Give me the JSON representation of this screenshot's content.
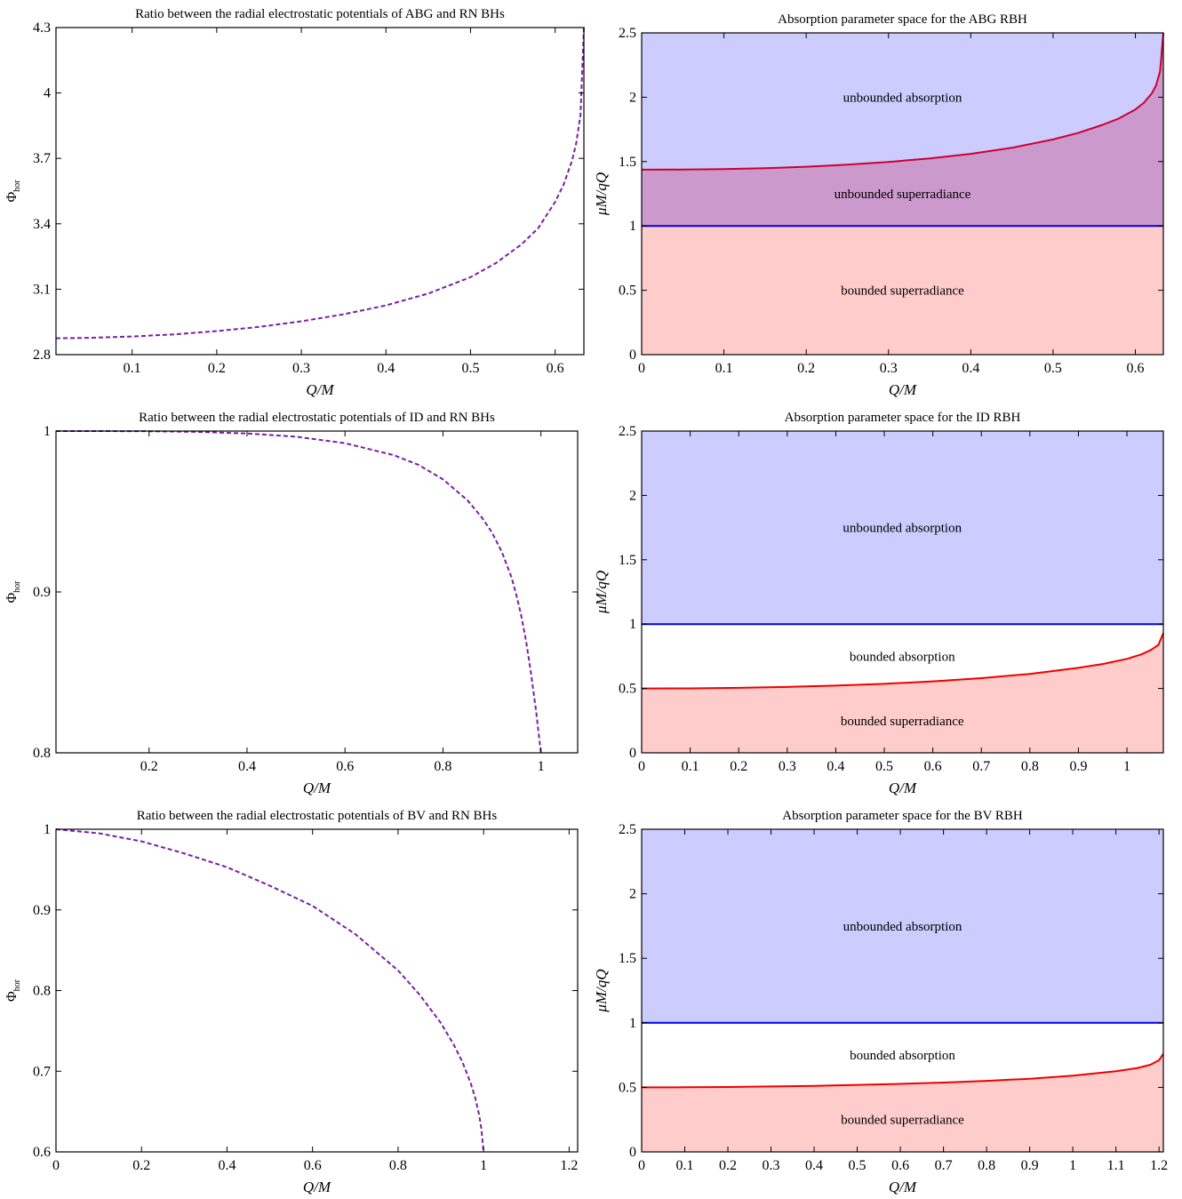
{
  "chart_data": [
    {
      "id": "abg-ratio",
      "type": "line",
      "title": "Ratio between the radial electrostatic potentials of ABG and RN BHs",
      "xlabel": "Q/M",
      "ylabel": "Φ_hor",
      "ylabel_main": "Φ",
      "ylabel_sub": "hor",
      "xlim": [
        0.01,
        0.634
      ],
      "ylim": [
        2.8,
        4.3
      ],
      "xticks": [
        0.1,
        0.2,
        0.3,
        0.4,
        0.5,
        0.6
      ],
      "yticks": [
        2.8,
        3.1,
        3.4,
        3.7,
        4.0,
        4.3
      ],
      "ytick_labels": [
        "2.8",
        "3.1",
        "3.4",
        "3.7",
        "4",
        "4.3"
      ],
      "series": [
        {
          "style": "dashed",
          "color": "#7b1fa2",
          "x": [
            0.01,
            0.05,
            0.1,
            0.15,
            0.2,
            0.25,
            0.3,
            0.35,
            0.4,
            0.45,
            0.5,
            0.53,
            0.56,
            0.58,
            0.6,
            0.61,
            0.62,
            0.625,
            0.63,
            0.634
          ],
          "y": [
            2.875,
            2.877,
            2.883,
            2.893,
            2.908,
            2.927,
            2.953,
            2.985,
            3.026,
            3.08,
            3.155,
            3.22,
            3.305,
            3.38,
            3.5,
            3.58,
            3.69,
            3.77,
            3.9,
            4.3
          ]
        }
      ]
    },
    {
      "id": "abg-space",
      "type": "area",
      "title": "Absorption parameter space for the ABG RBH",
      "xlabel": "Q/M",
      "ylabel": "μM/qQ",
      "xlim": [
        0,
        0.634
      ],
      "ylim": [
        0,
        2.5
      ],
      "xticks": [
        0,
        0.1,
        0.2,
        0.3,
        0.4,
        0.5,
        0.6
      ],
      "yticks": [
        0,
        0.5,
        1,
        1.5,
        2,
        2.5
      ],
      "ytick_labels": [
        "0",
        "0.5",
        "1",
        "1.5",
        "2",
        "2.5"
      ],
      "top_fill": "#ccccff",
      "unit_line": {
        "y": 1,
        "color": "#0000ee"
      },
      "curve": {
        "color": "#cc0033",
        "x": [
          0,
          0.05,
          0.1,
          0.15,
          0.2,
          0.25,
          0.3,
          0.35,
          0.4,
          0.45,
          0.5,
          0.53,
          0.56,
          0.58,
          0.6,
          0.61,
          0.62,
          0.625,
          0.63,
          0.634
        ],
        "y": [
          1.437,
          1.438,
          1.442,
          1.449,
          1.46,
          1.476,
          1.497,
          1.525,
          1.56,
          1.607,
          1.672,
          1.722,
          1.785,
          1.835,
          1.905,
          1.955,
          2.03,
          2.09,
          2.2,
          2.5
        ]
      },
      "bands": [
        {
          "from": "unit",
          "to": "curve",
          "color": "#cc99cc"
        },
        {
          "from": 0,
          "to": "unit",
          "color": "#ffcccc"
        }
      ],
      "annotations": [
        {
          "text": "unbounded absorption",
          "x": 0.317,
          "y": 2.0
        },
        {
          "text": "unbounded superradiance",
          "x": 0.317,
          "y": 1.25
        },
        {
          "text": "bounded superradiance",
          "x": 0.317,
          "y": 0.5
        }
      ]
    },
    {
      "id": "id-ratio",
      "type": "line",
      "title": "Ratio between the radial electrostatic potentials of ID and RN BHs",
      "xlabel": "Q/M",
      "ylabel": "Φ_hor",
      "ylabel_main": "Φ",
      "ylabel_sub": "hor",
      "xlim": [
        0.01,
        1.075
      ],
      "ylim": [
        0.8,
        1.0
      ],
      "xticks": [
        0.2,
        0.4,
        0.6,
        0.8,
        1.0
      ],
      "xtick_labels": [
        "0.2",
        "0.4",
        "0.6",
        "0.8",
        "1"
      ],
      "yticks": [
        0.8,
        0.9,
        1.0
      ],
      "ytick_labels": [
        "0.8",
        "0.9",
        "1"
      ],
      "series": [
        {
          "style": "dashed",
          "color": "#7b1fa2",
          "x": [
            0.01,
            0.1,
            0.2,
            0.3,
            0.4,
            0.5,
            0.6,
            0.7,
            0.75,
            0.8,
            0.85,
            0.88,
            0.9,
            0.92,
            0.94,
            0.95,
            0.96,
            0.97,
            0.98,
            0.99,
            0.995,
            1.0
          ],
          "y": [
            1.0,
            1.0,
            0.9999,
            0.9995,
            0.9985,
            0.9965,
            0.9925,
            0.985,
            0.979,
            0.97,
            0.957,
            0.946,
            0.937,
            0.925,
            0.909,
            0.898,
            0.885,
            0.869,
            0.849,
            0.826,
            0.813,
            0.8
          ]
        }
      ]
    },
    {
      "id": "id-space",
      "type": "area",
      "title": "Absorption parameter space for the ID RBH",
      "xlabel": "Q/M",
      "ylabel": "μM/qQ",
      "xlim": [
        0,
        1.075
      ],
      "ylim": [
        0,
        2.5
      ],
      "xticks": [
        0,
        0.1,
        0.2,
        0.3,
        0.4,
        0.5,
        0.6,
        0.7,
        0.8,
        0.9,
        1.0
      ],
      "xtick_labels": [
        "0",
        "0.1",
        "0.2",
        "0.3",
        "0.4",
        "0.5",
        "0.6",
        "0.7",
        "0.8",
        "0.9",
        "1"
      ],
      "yticks": [
        0,
        0.5,
        1,
        1.5,
        2,
        2.5
      ],
      "ytick_labels": [
        "0",
        "0.5",
        "1",
        "1.5",
        "2",
        "2.5"
      ],
      "top_fill": "#ccccff",
      "unit_line": {
        "y": 1,
        "color": "#0000ee"
      },
      "curve": {
        "color": "#ee0000",
        "x": [
          0,
          0.1,
          0.2,
          0.3,
          0.4,
          0.5,
          0.6,
          0.7,
          0.8,
          0.9,
          0.95,
          1.0,
          1.03,
          1.05,
          1.065,
          1.075
        ],
        "y": [
          0.5,
          0.501,
          0.505,
          0.512,
          0.522,
          0.536,
          0.555,
          0.58,
          0.613,
          0.66,
          0.69,
          0.73,
          0.765,
          0.8,
          0.84,
          0.93
        ]
      },
      "bands": [
        {
          "from": 0,
          "to": "curve",
          "color": "#ffcccc"
        }
      ],
      "annotations": [
        {
          "text": "unbounded absorption",
          "x": 0.537,
          "y": 1.75
        },
        {
          "text": "bounded absorption",
          "x": 0.537,
          "y": 0.75
        },
        {
          "text": "bounded superradiance",
          "x": 0.537,
          "y": 0.25
        }
      ]
    },
    {
      "id": "bv-ratio",
      "type": "line",
      "title": "Ratio between the radial electrostatic potentials of BV and RN BHs",
      "xlabel": "Q/M",
      "ylabel": "Φ_hor",
      "ylabel_main": "Φ",
      "ylabel_sub": "hor",
      "xlim": [
        0,
        1.22
      ],
      "ylim": [
        0.6,
        1.0
      ],
      "xticks": [
        0,
        0.2,
        0.4,
        0.6,
        0.8,
        1.0,
        1.2
      ],
      "xtick_labels": [
        "0",
        "0.2",
        "0.4",
        "0.6",
        "0.8",
        "1",
        "1.2"
      ],
      "yticks": [
        0.6,
        0.7,
        0.8,
        0.9,
        1.0
      ],
      "ytick_labels": [
        "0.6",
        "0.7",
        "0.8",
        "0.9",
        "1"
      ],
      "series": [
        {
          "style": "dashed",
          "color": "#7b1fa2",
          "x": [
            0,
            0.1,
            0.2,
            0.3,
            0.4,
            0.5,
            0.6,
            0.7,
            0.8,
            0.85,
            0.9,
            0.93,
            0.95,
            0.97,
            0.98,
            0.99,
            0.995,
            1.0
          ],
          "y": [
            1.0,
            0.995,
            0.985,
            0.97,
            0.953,
            0.93,
            0.905,
            0.87,
            0.825,
            0.795,
            0.76,
            0.733,
            0.712,
            0.685,
            0.668,
            0.645,
            0.628,
            0.6
          ]
        }
      ]
    },
    {
      "id": "bv-space",
      "type": "area",
      "title": "Absorption parameter space for the BV RBH",
      "xlabel": "Q/M",
      "ylabel": "μM/qQ",
      "xlim": [
        0,
        1.21
      ],
      "ylim": [
        0,
        2.5
      ],
      "xticks": [
        0,
        0.1,
        0.2,
        0.3,
        0.4,
        0.5,
        0.6,
        0.7,
        0.8,
        0.9,
        1.0,
        1.1,
        1.2
      ],
      "xtick_labels": [
        "0",
        "0.1",
        "0.2",
        "0.3",
        "0.4",
        "0.5",
        "0.6",
        "0.7",
        "0.8",
        "0.9",
        "1",
        "1.1",
        "1.2"
      ],
      "yticks": [
        0,
        0.5,
        1,
        1.5,
        2,
        2.5
      ],
      "ytick_labels": [
        "0",
        "0.5",
        "1",
        "1.5",
        "2",
        "2.5"
      ],
      "top_fill": "#ccccff",
      "unit_line": {
        "y": 1,
        "color": "#0000ee"
      },
      "curve": {
        "color": "#ee0000",
        "x": [
          0,
          0.1,
          0.2,
          0.3,
          0.4,
          0.5,
          0.6,
          0.7,
          0.8,
          0.9,
          1.0,
          1.1,
          1.15,
          1.18,
          1.2,
          1.21
        ],
        "y": [
          0.5,
          0.501,
          0.503,
          0.507,
          0.512,
          0.519,
          0.527,
          0.537,
          0.55,
          0.567,
          0.59,
          0.625,
          0.65,
          0.675,
          0.71,
          0.76
        ]
      },
      "bands": [
        {
          "from": 0,
          "to": "curve",
          "color": "#ffcccc"
        }
      ],
      "annotations": [
        {
          "text": "unbounded absorption",
          "x": 0.605,
          "y": 1.75
        },
        {
          "text": "bounded absorption",
          "x": 0.605,
          "y": 0.75
        },
        {
          "text": "bounded superradiance",
          "x": 0.605,
          "y": 0.25
        }
      ]
    }
  ]
}
